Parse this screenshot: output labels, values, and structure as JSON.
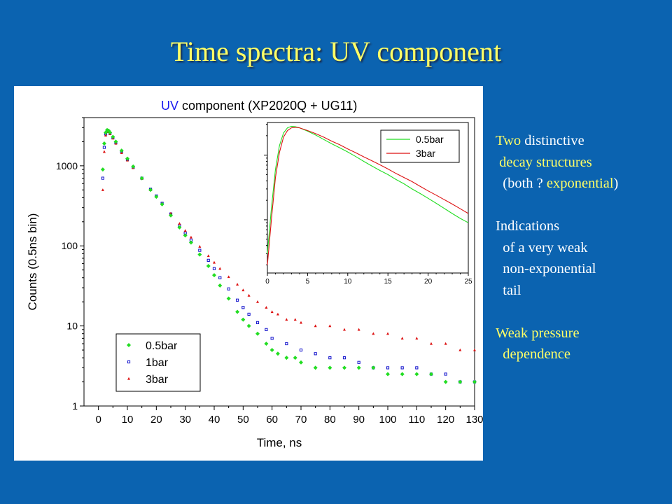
{
  "slide": {
    "title": "Time spectra: UV component"
  },
  "notes": [
    [
      {
        "t": "Two",
        "c": "y"
      },
      {
        "t": " distinctive",
        "c": "w"
      }
    ],
    [
      {
        "t": " decay structures",
        "c": "y"
      }
    ],
    [
      {
        "t": "  (both ? ",
        "c": "w"
      },
      {
        "t": "exponential",
        "c": "y"
      },
      {
        "t": ")",
        "c": "w"
      }
    ],
    [
      {
        "t": "",
        "c": "w"
      }
    ],
    [
      {
        "t": "Indications",
        "c": "w"
      }
    ],
    [
      {
        "t": "  of a very weak",
        "c": "w"
      }
    ],
    [
      {
        "t": "  non-exponential",
        "c": "w"
      }
    ],
    [
      {
        "t": "  tail",
        "c": "w"
      }
    ],
    [
      {
        "t": "",
        "c": "w"
      }
    ],
    [
      {
        "t": "Weak pressure",
        "c": "y"
      }
    ],
    [
      {
        "t": "  dependence",
        "c": "y"
      }
    ]
  ],
  "colors": {
    "background": "#0b63b0",
    "title": "#ffff66",
    "series_0_5bar": "#22dd22",
    "series_1bar": "#1010cc",
    "series_3bar": "#dd1111",
    "uv_word": "#1a1aee"
  },
  "chart_data": [
    {
      "type": "scatter",
      "title_parts": [
        {
          "text": "UV",
          "color": "#1a1aee"
        },
        {
          "text": " component (XP2020Q + UG11)",
          "color": "#000000"
        }
      ],
      "xlabel": "Time, ns",
      "ylabel": "Counts (0.5ns bin)",
      "xlim": [
        -5,
        130
      ],
      "ylim": [
        1,
        4000
      ],
      "yscale": "log",
      "x_ticks": [
        "0",
        "10",
        "20",
        "30",
        "40",
        "50",
        "60",
        "70",
        "80",
        "90",
        "100",
        "110",
        "120",
        "130"
      ],
      "y_ticks": [
        "1",
        "10",
        "100",
        "1000"
      ],
      "legend_position": "bottom-left",
      "series": [
        {
          "name": "0.5bar",
          "marker": "diamond",
          "x": [
            1.5,
            2,
            2.5,
            3,
            3.5,
            4,
            5,
            6,
            8,
            10,
            12,
            15,
            18,
            20,
            22,
            25,
            28,
            30,
            32,
            35,
            38,
            40,
            42,
            45,
            48,
            50,
            52,
            55,
            58,
            60,
            62,
            65,
            68,
            70,
            75,
            80,
            85,
            90,
            95,
            100,
            105,
            110,
            115,
            120,
            125,
            130
          ],
          "y": [
            900,
            1900,
            2600,
            2800,
            2750,
            2600,
            2300,
            2000,
            1550,
            1230,
            980,
            700,
            500,
            410,
            330,
            240,
            170,
            135,
            110,
            78,
            56,
            43,
            32,
            22,
            15,
            12,
            10,
            8,
            6,
            5,
            4.5,
            4,
            4,
            3.5,
            3,
            3,
            3,
            3,
            3,
            2.5,
            2.5,
            2.5,
            2.5,
            2,
            2,
            2
          ]
        },
        {
          "name": "1bar",
          "marker": "square",
          "x": [
            1.5,
            2,
            2.5,
            3,
            3.5,
            4,
            5,
            6,
            8,
            10,
            12,
            15,
            18,
            20,
            22,
            25,
            28,
            30,
            32,
            35,
            38,
            40,
            42,
            45,
            48,
            50,
            52,
            55,
            58,
            60,
            65,
            70,
            75,
            80,
            85,
            90,
            95,
            100,
            105,
            110,
            115,
            120,
            125,
            130
          ],
          "y": [
            700,
            1700,
            2500,
            2750,
            2700,
            2550,
            2250,
            1950,
            1500,
            1200,
            960,
            700,
            510,
            420,
            340,
            250,
            180,
            145,
            118,
            88,
            66,
            52,
            40,
            29,
            21,
            17,
            14,
            11,
            9,
            7,
            6,
            5,
            4.5,
            4,
            4,
            3.5,
            3,
            3,
            3,
            3,
            2.5,
            2.5,
            2,
            2
          ]
        },
        {
          "name": "3bar",
          "marker": "triangle",
          "x": [
            1.5,
            2,
            2.5,
            3,
            3.5,
            4,
            5,
            6,
            8,
            10,
            12,
            15,
            18,
            20,
            22,
            25,
            28,
            30,
            32,
            35,
            38,
            40,
            42,
            45,
            48,
            50,
            52,
            55,
            58,
            60,
            62,
            65,
            68,
            70,
            75,
            80,
            85,
            90,
            95,
            100,
            105,
            110,
            115,
            120,
            125,
            130
          ],
          "y": [
            500,
            1500,
            2400,
            2700,
            2650,
            2500,
            2200,
            1900,
            1450,
            1170,
            940,
            690,
            500,
            415,
            340,
            255,
            190,
            155,
            128,
            98,
            75,
            62,
            52,
            41,
            33,
            28,
            24,
            20,
            17,
            15,
            14,
            12,
            12,
            11,
            10,
            10,
            9,
            9,
            8,
            8,
            7,
            7,
            6,
            6,
            5,
            5
          ]
        }
      ]
    },
    {
      "type": "line",
      "subtype": "inset",
      "xlim": [
        0,
        25
      ],
      "x_ticks": [
        "0",
        "5",
        "10",
        "15",
        "20",
        "25"
      ],
      "yscale": "log",
      "legend_position": "top-right",
      "series": [
        {
          "name": "0.5bar",
          "x": [
            0,
            0.5,
            1,
            1.5,
            2,
            2.5,
            3,
            3.5,
            4,
            5,
            6,
            7,
            8,
            9,
            10,
            11,
            12,
            13,
            14,
            15,
            16,
            17,
            18,
            19,
            20,
            21,
            22,
            23,
            24,
            25
          ],
          "y": [
            30,
            150,
            600,
            1400,
            2200,
            2650,
            2800,
            2750,
            2650,
            2350,
            2050,
            1750,
            1500,
            1300,
            1120,
            950,
            800,
            680,
            580,
            500,
            420,
            360,
            300,
            255,
            215,
            180,
            150,
            125,
            105,
            90
          ]
        },
        {
          "name": "3bar",
          "x": [
            0,
            0.5,
            1,
            1.5,
            2,
            2.5,
            3,
            3.5,
            4,
            5,
            6,
            7,
            8,
            9,
            10,
            11,
            12,
            13,
            14,
            15,
            16,
            17,
            18,
            19,
            20,
            21,
            22,
            23,
            24,
            25
          ],
          "y": [
            20,
            100,
            450,
            1100,
            1900,
            2400,
            2650,
            2700,
            2650,
            2400,
            2150,
            1900,
            1650,
            1450,
            1250,
            1090,
            940,
            820,
            710,
            610,
            520,
            450,
            390,
            330,
            280,
            240,
            205,
            175,
            148,
            125
          ]
        }
      ]
    }
  ]
}
